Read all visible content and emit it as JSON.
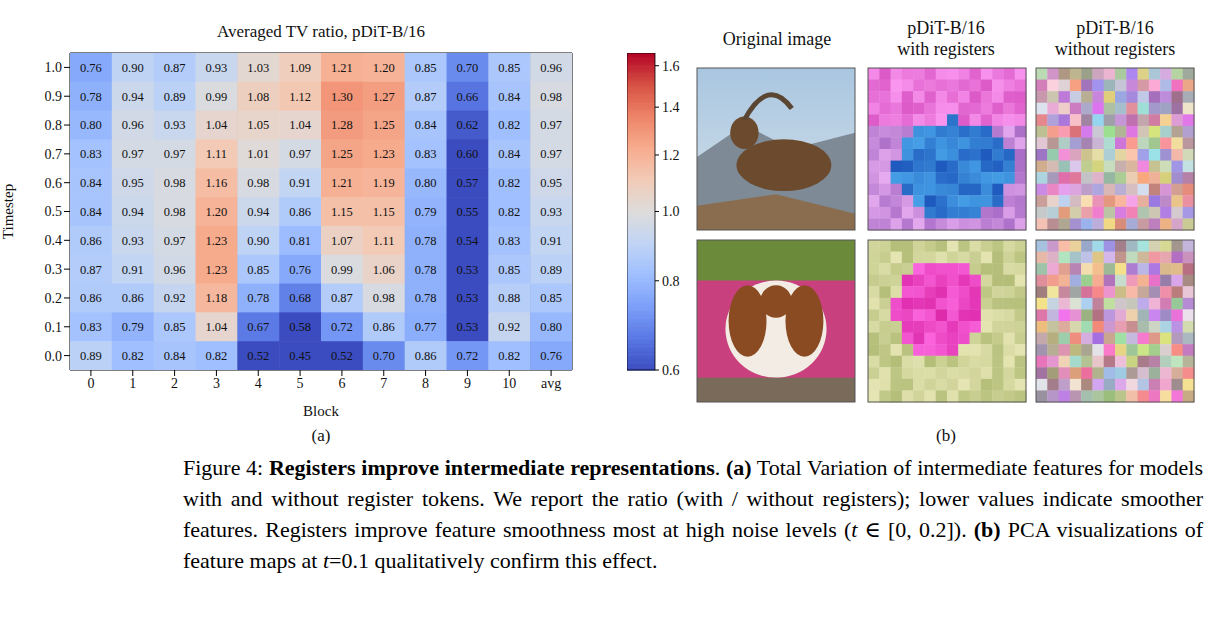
{
  "chart_data": {
    "type": "heatmap",
    "title": "Averaged TV ratio, pDiT-B/16",
    "x_label": "Block",
    "y_label": "Timestep",
    "categories": [
      "0",
      "1",
      "2",
      "3",
      "4",
      "5",
      "6",
      "7",
      "8",
      "9",
      "10",
      "avg"
    ],
    "y_categories": [
      "1.0",
      "0.9",
      "0.8",
      "0.7",
      "0.6",
      "0.5",
      "0.4",
      "0.3",
      "0.2",
      "0.1",
      "0.0"
    ],
    "values": [
      [
        0.76,
        0.9,
        0.87,
        0.93,
        1.03,
        1.09,
        1.21,
        1.2,
        0.85,
        0.7,
        0.85,
        0.96
      ],
      [
        0.78,
        0.94,
        0.89,
        0.99,
        1.08,
        1.12,
        1.3,
        1.27,
        0.87,
        0.66,
        0.84,
        0.98
      ],
      [
        0.8,
        0.96,
        0.93,
        1.04,
        1.05,
        1.04,
        1.28,
        1.25,
        0.84,
        0.62,
        0.82,
        0.97
      ],
      [
        0.83,
        0.97,
        0.97,
        1.11,
        1.01,
        0.97,
        1.25,
        1.23,
        0.83,
        0.6,
        0.84,
        0.97
      ],
      [
        0.84,
        0.95,
        0.98,
        1.16,
        0.98,
        0.91,
        1.21,
        1.19,
        0.8,
        0.57,
        0.82,
        0.95
      ],
      [
        0.84,
        0.94,
        0.98,
        1.2,
        0.94,
        0.86,
        1.15,
        1.15,
        0.79,
        0.55,
        0.82,
        0.93
      ],
      [
        0.86,
        0.93,
        0.97,
        1.23,
        0.9,
        0.81,
        1.07,
        1.11,
        0.78,
        0.54,
        0.83,
        0.91
      ],
      [
        0.87,
        0.91,
        0.96,
        1.23,
        0.85,
        0.76,
        0.99,
        1.06,
        0.78,
        0.53,
        0.85,
        0.89
      ],
      [
        0.86,
        0.86,
        0.92,
        1.18,
        0.78,
        0.68,
        0.87,
        0.98,
        0.78,
        0.53,
        0.88,
        0.85
      ],
      [
        0.83,
        0.79,
        0.85,
        1.04,
        0.67,
        0.58,
        0.72,
        0.86,
        0.77,
        0.53,
        0.92,
        0.8
      ],
      [
        0.89,
        0.82,
        0.84,
        0.82,
        0.52,
        0.45,
        0.52,
        0.7,
        0.86,
        0.72,
        0.82,
        0.76
      ]
    ],
    "value_labels": [
      [
        "0.76",
        "0.90",
        "0.87",
        "0.93",
        "1.03",
        "1.09",
        "1.21",
        "1.20",
        "0.85",
        "0.70",
        "0.85",
        "0.96"
      ],
      [
        "0.78",
        "0.94",
        "0.89",
        "0.99",
        "1.08",
        "1.12",
        "1.30",
        "1.27",
        "0.87",
        "0.66",
        "0.84",
        "0.98"
      ],
      [
        "0.80",
        "0.96",
        "0.93",
        "1.04",
        "1.05",
        "1.04",
        "1.28",
        "1.25",
        "0.84",
        "0.62",
        "0.82",
        "0.97"
      ],
      [
        "0.83",
        "0.97",
        "0.97",
        "1.11",
        "1.01",
        "0.97",
        "1.25",
        "1.23",
        "0.83",
        "0.60",
        "0.84",
        "0.97"
      ],
      [
        "0.84",
        "0.95",
        "0.98",
        "1.16",
        "0.98",
        "0.91",
        "1.21",
        "1.19",
        "0.80",
        "0.57",
        "0.82",
        "0.95"
      ],
      [
        "0.84",
        "0.94",
        "0.98",
        "1.20",
        "0.94",
        "0.86",
        "1.15",
        "1.15",
        "0.79",
        "0.55",
        "0.82",
        "0.93"
      ],
      [
        "0.86",
        "0.93",
        "0.97",
        "1.23",
        "0.90",
        "0.81",
        "1.07",
        "1.11",
        "0.78",
        "0.54",
        "0.83",
        "0.91"
      ],
      [
        "0.87",
        "0.91",
        "0.96",
        "1.23",
        "0.85",
        "0.76",
        "0.99",
        "1.06",
        "0.78",
        "0.53",
        "0.85",
        "0.89"
      ],
      [
        "0.86",
        "0.86",
        "0.92",
        "1.18",
        "0.78",
        "0.68",
        "0.87",
        "0.98",
        "0.78",
        "0.53",
        "0.88",
        "0.85"
      ],
      [
        "0.83",
        "0.79",
        "0.85",
        "1.04",
        "0.67",
        "0.58",
        "0.72",
        "0.86",
        "0.77",
        "0.53",
        "0.92",
        "0.80"
      ],
      [
        "0.89",
        "0.82",
        "0.84",
        "0.82",
        "0.52",
        "0.45",
        "0.52",
        "0.70",
        "0.86",
        "0.72",
        "0.82",
        "0.76"
      ]
    ],
    "data_labels": true,
    "color": "coolwarm",
    "colorbar": {
      "range": [
        0.6,
        1.667
      ],
      "ticks": [
        0.6,
        0.8,
        {
          "value": 1,
          "label": "1.0"
        },
        1.2,
        1.4,
        1.6
      ],
      "log": true
    }
  },
  "panel_labels": [
    "(a)",
    "(b)"
  ],
  "panel_b": {
    "headers": [
      "Original image",
      "pDiT-B/16 with registers",
      "pDiT-B/16 without registers"
    ]
  },
  "caption": [
    {
      "text": "Figure 4: "
    },
    {
      "text": "Registers improve intermediate representations",
      "bold": true
    },
    {
      "text": ". "
    },
    {
      "text": "(a)",
      "bold": true
    },
    {
      "text": " Total Variation of intermediate features for models with and without register tokens. We report the ratio (with / without registers); lower values indicate smoother features. Registers improve feature smoothness most at high noise levels ("
    },
    {
      "text": "t",
      "italic": true
    },
    {
      "text": " ∈ [0, 0.2]). "
    },
    {
      "text": "(b)",
      "bold": true
    },
    {
      "text": " PCA visualizations of feature maps at "
    },
    {
      "text": "t",
      "italic": true
    },
    {
      "text": "=0.1 qualitatively confirm this effect."
    }
  ]
}
